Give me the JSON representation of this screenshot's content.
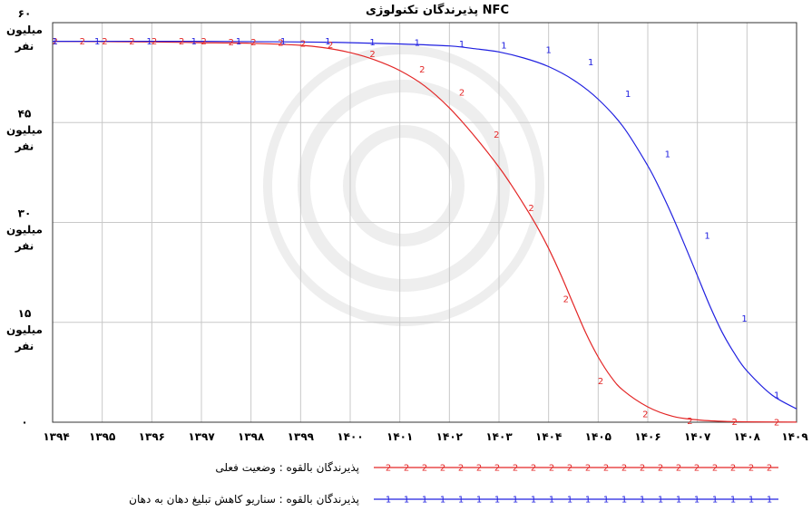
{
  "chart_data": {
    "type": "line",
    "title": "پذیرندگان تکنولوژی NFC",
    "xlim": [
      1394,
      1409
    ],
    "ylim": [
      0,
      60
    ],
    "grid": true,
    "x_tick_labels": [
      "۱۳۹۴",
      "۱۳۹۵",
      "۱۳۹۶",
      "۱۳۹۷",
      "۱۳۹۸",
      "۱۳۹۹",
      "۱۴۰۰",
      "۱۴۰۱",
      "۱۴۰۲",
      "۱۴۰۳",
      "۱۴۰۴",
      "۱۴۰۵",
      "۱۴۰۶",
      "۱۴۰۷",
      "۱۴۰۸",
      "۱۴۰۹"
    ],
    "y_ticks": [
      {
        "value": 60,
        "lines": [
          "۶۰",
          "میلیون",
          "نفر"
        ]
      },
      {
        "value": 45,
        "lines": [
          "۴۵",
          "میلیون",
          "نفر"
        ]
      },
      {
        "value": 30,
        "lines": [
          "۳۰",
          "میلیون",
          "نفر"
        ]
      },
      {
        "value": 15,
        "lines": [
          "۱۵",
          "میلیون",
          "نفر"
        ]
      },
      {
        "value": 0,
        "lines": [
          "۰"
        ]
      }
    ],
    "legend_position": "bottom",
    "series": [
      {
        "name": "پذیرندگان بالقوه : وضعیت فعلی",
        "marker": "2",
        "color": "#e32626",
        "x": [
          1394,
          1396,
          1397,
          1398,
          1399,
          1399.5,
          1400,
          1400.5,
          1401,
          1401.5,
          1402,
          1402.5,
          1403,
          1403.25,
          1403.5,
          1403.75,
          1404,
          1404.25,
          1404.5,
          1404.75,
          1405,
          1405.25,
          1405.5,
          1406,
          1406.5,
          1407,
          1407.5,
          1408,
          1409
        ],
        "y": [
          57.2,
          57.1,
          57.0,
          56.9,
          56.6,
          56.2,
          55.5,
          54.4,
          52.8,
          50.5,
          47.2,
          43.0,
          38.3,
          35.6,
          32.7,
          29.6,
          26.1,
          22.1,
          17.7,
          13.4,
          9.8,
          6.9,
          4.8,
          2.3,
          0.9,
          0.35,
          0.13,
          0.05,
          0.02
        ],
        "marker_x": [
          1394.05,
          1394.6,
          1395.05,
          1395.6,
          1396.05,
          1396.6,
          1397.05,
          1397.6,
          1398.05,
          1398.6,
          1399.05,
          1399.6,
          1400.45,
          1401.45,
          1402.25,
          1402.95,
          1403.65,
          1404.35,
          1405.05,
          1405.95,
          1406.85,
          1407.75,
          1408.6
        ],
        "marker_y": [
          57.2,
          57.2,
          57.2,
          57.2,
          57.2,
          57.2,
          57.2,
          57.1,
          57.1,
          57.0,
          56.9,
          56.7,
          55.3,
          53.0,
          49.5,
          43.2,
          32.2,
          18.5,
          6.2,
          1.2,
          0.2,
          0.05,
          0.02
        ]
      },
      {
        "name": "پذیرندگان بالقوه : سناریو کاهش تبلیغ دهان به دهان",
        "marker": "1",
        "color": "#2020e0",
        "x": [
          1394,
          1397,
          1399,
          1400,
          1401,
          1402,
          1402.5,
          1403,
          1403.5,
          1404,
          1404.5,
          1405,
          1405.5,
          1406,
          1406.25,
          1406.5,
          1406.75,
          1407,
          1407.25,
          1407.5,
          1407.75,
          1408,
          1408.5,
          1409
        ],
        "y": [
          57.2,
          57.2,
          57.1,
          57.0,
          56.8,
          56.5,
          56.1,
          55.6,
          54.7,
          53.4,
          51.4,
          48.5,
          44.4,
          38.5,
          34.9,
          30.9,
          26.5,
          22.0,
          17.5,
          13.5,
          10.3,
          7.7,
          4.1,
          2.0
        ],
        "marker_x": [
          1394.05,
          1394.9,
          1395.95,
          1396.85,
          1397.75,
          1398.65,
          1399.55,
          1400.45,
          1401.35,
          1402.25,
          1403.1,
          1404.0,
          1404.85,
          1405.6,
          1406.4,
          1407.2,
          1407.95,
          1408.6
        ],
        "marker_y": [
          57.2,
          57.2,
          57.2,
          57.2,
          57.2,
          57.2,
          57.2,
          57.1,
          57.0,
          56.8,
          56.6,
          55.9,
          54.1,
          49.3,
          40.3,
          28.0,
          15.6,
          4.1
        ]
      }
    ]
  }
}
